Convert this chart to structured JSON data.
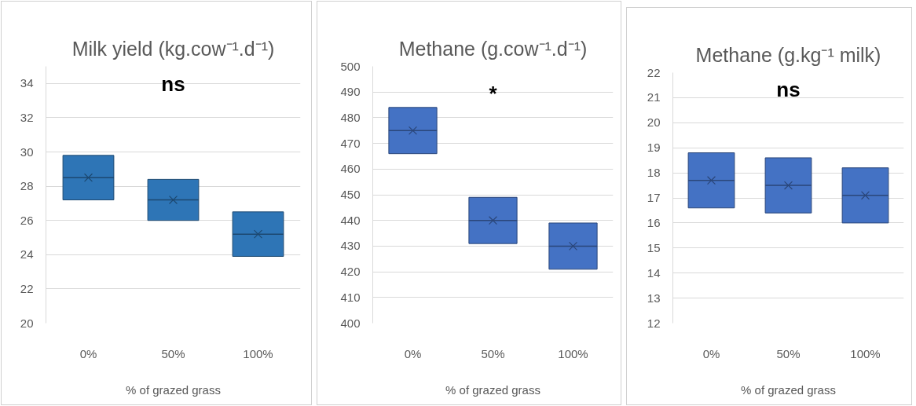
{
  "chart_data": [
    {
      "type": "box",
      "title": "Milk yield (kg.cow⁻¹.d⁻¹)",
      "xlabel": "% of grazed grass",
      "categories": [
        "0%",
        "50%",
        "100%"
      ],
      "series": [
        {
          "color": "#2e75b6",
          "boxes": [
            {
              "low": 27.2,
              "q1": 27.2,
              "median": 28.5,
              "q3": 29.8,
              "high": 29.8,
              "mean": 28.5
            },
            {
              "low": 26.0,
              "q1": 26.0,
              "median": 27.2,
              "q3": 28.4,
              "high": 28.4,
              "mean": 27.2
            },
            {
              "low": 23.9,
              "q1": 23.9,
              "median": 25.2,
              "q3": 26.5,
              "high": 26.5,
              "mean": 25.2
            }
          ]
        }
      ],
      "ylim": [
        20,
        35
      ],
      "yticks": [
        20,
        22,
        24,
        26,
        28,
        30,
        32,
        34
      ],
      "grid": "y",
      "annotations": [
        "ns"
      ]
    },
    {
      "type": "box",
      "title": "Methane (g.cow⁻¹.d⁻¹)",
      "xlabel": "% of grazed grass",
      "categories": [
        "0%",
        "50%",
        "100%"
      ],
      "series": [
        {
          "color": "#4472c4",
          "boxes": [
            {
              "low": 466,
              "q1": 466,
              "median": 475,
              "q3": 484,
              "high": 484,
              "mean": 475
            },
            {
              "low": 431,
              "q1": 431,
              "median": 440,
              "q3": 449,
              "high": 449,
              "mean": 440
            },
            {
              "low": 421,
              "q1": 421,
              "median": 430,
              "q3": 439,
              "high": 439,
              "mean": 430
            }
          ]
        }
      ],
      "ylim": [
        400,
        500
      ],
      "yticks": [
        400,
        410,
        420,
        430,
        440,
        450,
        460,
        470,
        480,
        490,
        500
      ],
      "grid": "y",
      "annotations": [
        "*"
      ]
    },
    {
      "type": "box",
      "title": "Methane (g.kg⁻¹ milk)",
      "xlabel": "% of grazed grass",
      "categories": [
        "0%",
        "50%",
        "100%"
      ],
      "series": [
        {
          "color": "#4472c4",
          "boxes": [
            {
              "low": 16.6,
              "q1": 16.6,
              "median": 17.7,
              "q3": 18.8,
              "high": 18.8,
              "mean": 17.7
            },
            {
              "low": 16.4,
              "q1": 16.4,
              "median": 17.5,
              "q3": 18.6,
              "high": 18.6,
              "mean": 17.5
            },
            {
              "low": 16.0,
              "q1": 16.0,
              "median": 17.1,
              "q3": 18.2,
              "high": 18.2,
              "mean": 17.1
            }
          ]
        }
      ],
      "ylim": [
        12,
        22
      ],
      "yticks": [
        12,
        13,
        14,
        15,
        16,
        17,
        18,
        19,
        20,
        21,
        22
      ],
      "grid": "y",
      "annotations": [
        "ns"
      ]
    }
  ]
}
